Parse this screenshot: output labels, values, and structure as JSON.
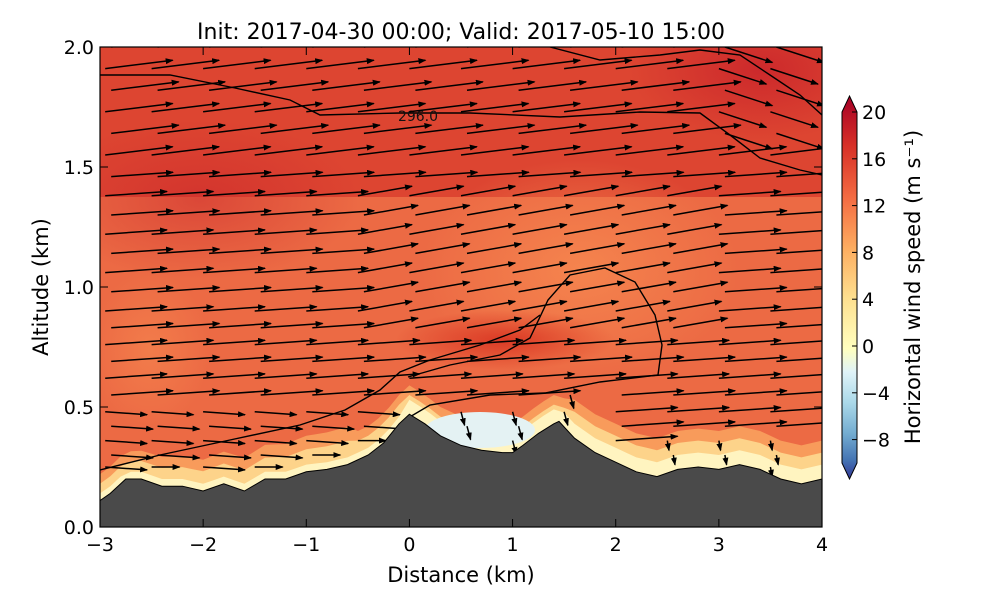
{
  "chart_data": {
    "type": "cross-section",
    "title": "Init: 2017-04-30 00:00; Valid: 2017-05-10 15:00",
    "xlabel": "Distance (km)",
    "ylabel": "Altitude (km)",
    "xlim": [
      -3,
      4
    ],
    "ylim": [
      0.0,
      2.0
    ],
    "xticks": [
      -3,
      -2,
      -1,
      0,
      1,
      2,
      3,
      4
    ],
    "xtick_labels": [
      "−3",
      "−2",
      "−1",
      "0",
      "1",
      "2",
      "3",
      "4"
    ],
    "yticks": [
      0.0,
      0.5,
      1.0,
      1.5,
      2.0
    ],
    "ytick_labels": [
      "0.0",
      "0.5",
      "1.0",
      "1.5",
      "2.0"
    ],
    "colorbar": {
      "label": "Horizontal wind speed (m s⁻¹)",
      "range": [
        -10,
        20
      ],
      "ticks": [
        20,
        16,
        12,
        8,
        4,
        0,
        -4,
        -8
      ],
      "tick_labels": [
        "20",
        "16",
        "12",
        "8",
        "4",
        "0",
        "−4",
        "−8"
      ],
      "colormap": "RdYlBu_r",
      "extend": "both"
    },
    "terrain": {
      "x": [
        -3.0,
        -2.9,
        -2.75,
        -2.6,
        -2.4,
        -2.2,
        -2.0,
        -1.8,
        -1.6,
        -1.4,
        -1.2,
        -1.0,
        -0.8,
        -0.6,
        -0.4,
        -0.25,
        -0.1,
        0.0,
        0.15,
        0.3,
        0.5,
        0.7,
        0.9,
        1.0,
        1.1,
        1.25,
        1.4,
        1.45,
        1.6,
        1.8,
        2.0,
        2.2,
        2.4,
        2.6,
        2.8,
        3.0,
        3.2,
        3.4,
        3.6,
        3.8,
        4.0
      ],
      "z": [
        0.11,
        0.14,
        0.2,
        0.2,
        0.17,
        0.17,
        0.15,
        0.18,
        0.15,
        0.2,
        0.2,
        0.23,
        0.24,
        0.26,
        0.3,
        0.35,
        0.43,
        0.47,
        0.43,
        0.38,
        0.34,
        0.32,
        0.31,
        0.31,
        0.34,
        0.39,
        0.43,
        0.44,
        0.37,
        0.31,
        0.27,
        0.23,
        0.21,
        0.24,
        0.25,
        0.24,
        0.26,
        0.24,
        0.2,
        0.18,
        0.2
      ]
    },
    "wind_speed_field": {
      "description_points": [
        {
          "x": -2.5,
          "z": 1.8,
          "speed": 17
        },
        {
          "x": 1.0,
          "z": 1.8,
          "speed": 16
        },
        {
          "x": 3.5,
          "z": 1.9,
          "speed": 18
        },
        {
          "x": -2.5,
          "z": 1.0,
          "speed": 14
        },
        {
          "x": 1.5,
          "z": 1.0,
          "speed": 11
        },
        {
          "x": 1.0,
          "z": 0.75,
          "speed": 17
        },
        {
          "x": 1.0,
          "z": 0.42,
          "speed": 0
        },
        {
          "x": 3.0,
          "z": 0.4,
          "speed": 4
        },
        {
          "x": -2.5,
          "z": 0.3,
          "speed": 6
        }
      ]
    },
    "contour_label": "296.0"
  }
}
